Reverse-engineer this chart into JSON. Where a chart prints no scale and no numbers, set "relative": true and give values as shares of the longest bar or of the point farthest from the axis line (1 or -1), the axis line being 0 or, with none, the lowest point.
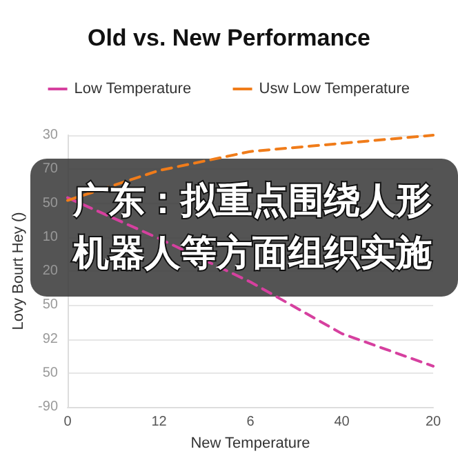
{
  "chart_data": {
    "type": "line",
    "title": "Old vs. New Performance",
    "xlabel": "New Temperature",
    "ylabel": "Lovy Bourt Hey ()",
    "categories": [
      "0",
      "12",
      "6",
      "40",
      "20"
    ],
    "relative": true,
    "series": [
      {
        "name": "Low Temperature",
        "color": "#d6409f",
        "values": [
          0.77,
          0.62,
          0.46,
          0.27,
          0.15
        ]
      },
      {
        "name": "Usw Low Temperature",
        "color": "#f07c1a",
        "values": [
          0.76,
          0.87,
          0.94,
          0.97,
          1
        ]
      }
    ],
    "grid": "y",
    "legend": "top",
    "marker": "none",
    "line_style": "dashed",
    "annotations": [
      "广东：拟重点围绕人形机器人等方面组织实施",
      "30",
      "70",
      "50",
      "10",
      "20",
      "50",
      "92",
      "50",
      "-90"
    ]
  }
}
